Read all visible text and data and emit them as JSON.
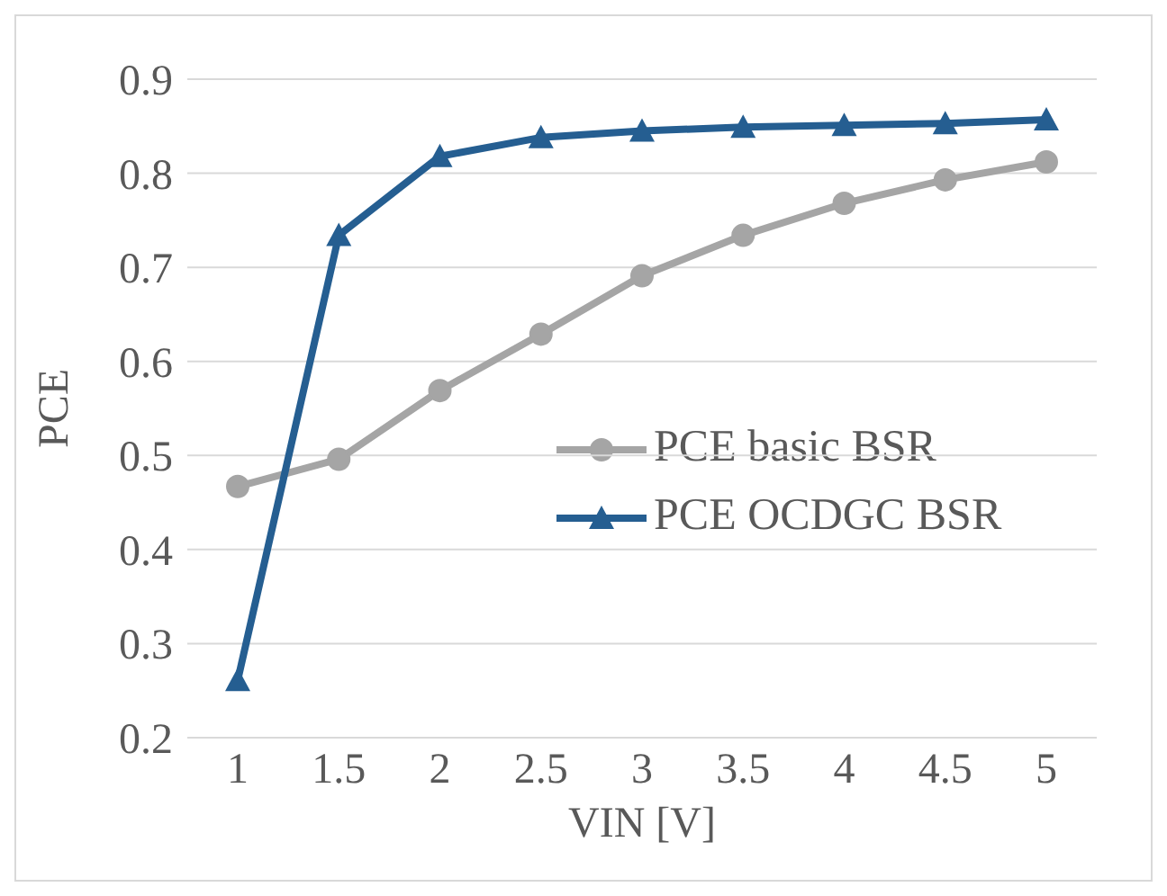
{
  "chart_data": {
    "type": "line",
    "xlabel": "VIN [V]",
    "ylabel": "PCE",
    "categories": [
      "1",
      "1.5",
      "2",
      "2.5",
      "3",
      "3.5",
      "4",
      "4.5",
      "5"
    ],
    "series": [
      {
        "name": "PCE basic BSR",
        "color": "#a5a5a5",
        "marker": "circle",
        "values": [
          0.467,
          0.496,
          0.569,
          0.629,
          0.691,
          0.734,
          0.768,
          0.793,
          0.812
        ]
      },
      {
        "name": "PCE OCDGC BSR",
        "color": "#255e91",
        "marker": "triangle",
        "values": [
          0.261,
          0.734,
          0.818,
          0.838,
          0.845,
          0.849,
          0.851,
          0.853,
          0.857
        ]
      }
    ],
    "ylim": [
      0.2,
      0.9
    ],
    "yticks": [
      0.2,
      0.3,
      0.4,
      0.5,
      0.6,
      0.7,
      0.8,
      0.9
    ],
    "grid": "y",
    "legend": "right"
  }
}
